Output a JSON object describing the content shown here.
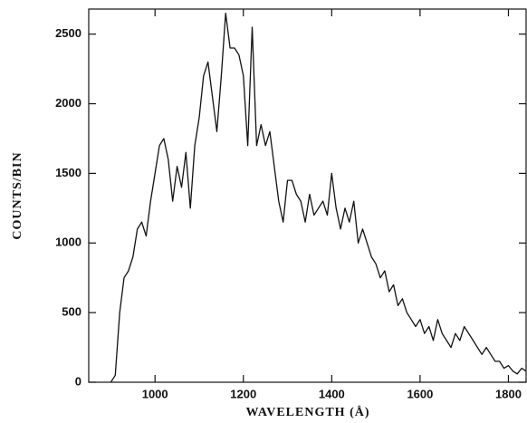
{
  "chart_data": {
    "type": "line",
    "xlabel": "WAVELENGTH (Å)",
    "ylabel": "COUNTS/BIN",
    "xlim": [
      850,
      1840
    ],
    "ylim": [
      0,
      2680
    ],
    "xticks": [
      1000,
      1200,
      1400,
      1600,
      1800
    ],
    "yticks": [
      0,
      500,
      1000,
      1500,
      2000,
      2500
    ],
    "color": "#111111",
    "x": [
      900,
      910,
      920,
      930,
      940,
      950,
      960,
      970,
      980,
      990,
      1000,
      1010,
      1020,
      1030,
      1040,
      1050,
      1060,
      1070,
      1080,
      1090,
      1100,
      1110,
      1120,
      1130,
      1140,
      1150,
      1160,
      1170,
      1180,
      1190,
      1200,
      1210,
      1220,
      1230,
      1240,
      1250,
      1260,
      1270,
      1280,
      1290,
      1300,
      1310,
      1320,
      1330,
      1340,
      1350,
      1360,
      1370,
      1380,
      1390,
      1400,
      1410,
      1420,
      1430,
      1440,
      1450,
      1460,
      1470,
      1480,
      1490,
      1500,
      1510,
      1520,
      1530,
      1540,
      1550,
      1560,
      1570,
      1580,
      1590,
      1600,
      1610,
      1620,
      1630,
      1640,
      1650,
      1660,
      1670,
      1680,
      1690,
      1700,
      1710,
      1720,
      1730,
      1740,
      1750,
      1760,
      1770,
      1780,
      1790,
      1800,
      1810,
      1820,
      1830,
      1840
    ],
    "values": [
      0,
      50,
      500,
      750,
      800,
      900,
      1100,
      1150,
      1050,
      1300,
      1500,
      1700,
      1750,
      1600,
      1300,
      1550,
      1400,
      1650,
      1250,
      1700,
      1900,
      2200,
      2300,
      2050,
      1800,
      2200,
      2650,
      2400,
      2400,
      2350,
      2200,
      1700,
      2550,
      1700,
      1850,
      1700,
      1800,
      1550,
      1300,
      1150,
      1450,
      1450,
      1350,
      1300,
      1150,
      1350,
      1200,
      1250,
      1300,
      1200,
      1500,
      1250,
      1100,
      1250,
      1150,
      1300,
      1000,
      1100,
      1000,
      900,
      850,
      750,
      800,
      650,
      700,
      550,
      600,
      500,
      450,
      400,
      450,
      350,
      400,
      300,
      450,
      350,
      300,
      250,
      350,
      300,
      400,
      350,
      300,
      250,
      200,
      250,
      200,
      150,
      150,
      100,
      120,
      80,
      60,
      100,
      80
    ]
  }
}
